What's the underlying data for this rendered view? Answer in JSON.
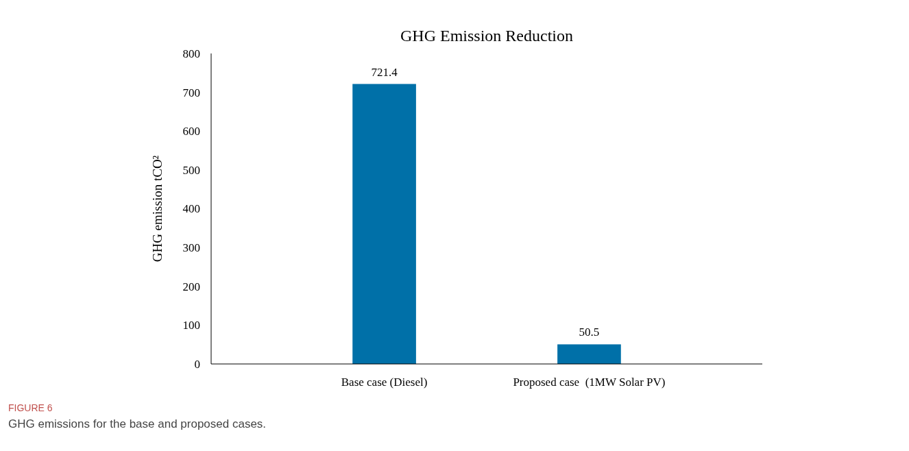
{
  "chart_data": {
    "type": "bar",
    "title": "GHG Emission Reduction",
    "ylabel": "GHG emission tCO²",
    "categories": [
      "Base case (Diesel)",
      "Proposed case  (1MW Solar PV)"
    ],
    "values": [
      721.4,
      50.5
    ],
    "color": "#0070a8",
    "data_labels": true,
    "ylim": [
      0,
      800
    ],
    "yticks": [
      0,
      100,
      200,
      300,
      400,
      500,
      600,
      700,
      800
    ],
    "grid": false,
    "annotations": [
      "FIGURE 6",
      "GHG emissions for the base and proposed cases."
    ]
  }
}
